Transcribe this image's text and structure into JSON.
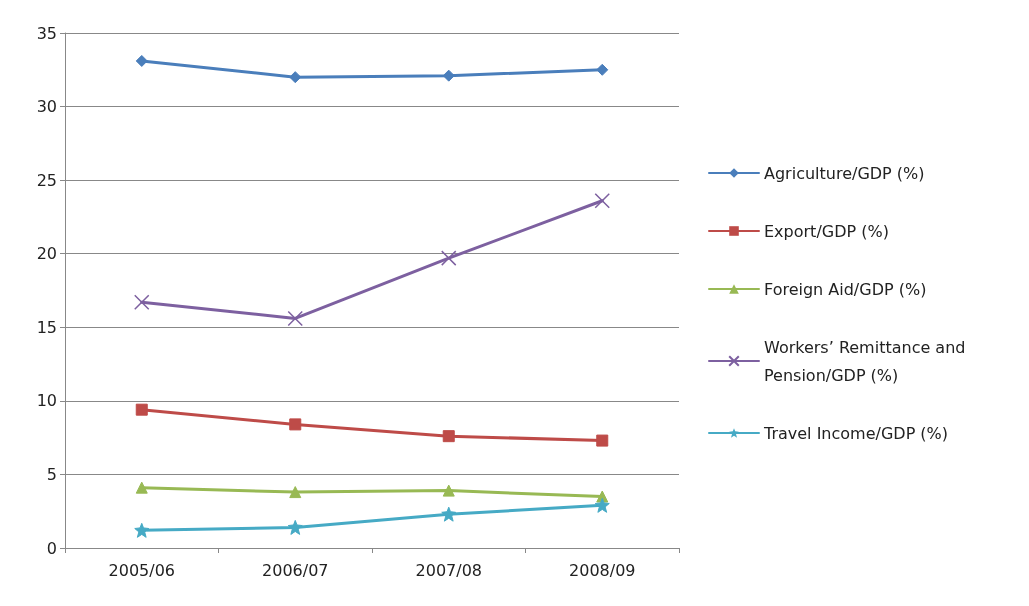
{
  "chart_data": {
    "type": "line",
    "categories": [
      "2005/06",
      "2006/07",
      "2007/08",
      "2008/09"
    ],
    "series": [
      {
        "name": "Agriculture/GDP (%)",
        "color": "#4a7ebb",
        "marker": "diamond",
        "values": [
          33.1,
          32.0,
          32.1,
          32.5
        ]
      },
      {
        "name": "Export/GDP (%)",
        "color": "#be4b48",
        "marker": "square",
        "values": [
          9.4,
          8.4,
          7.6,
          7.3
        ]
      },
      {
        "name": "Foreign Aid/GDP (%)",
        "color": "#98b954",
        "marker": "triangle",
        "values": [
          4.1,
          3.8,
          3.9,
          3.5
        ]
      },
      {
        "name": "Workers’ Remittance and Pension/GDP (%)",
        "color": "#7d60a0",
        "marker": "cross",
        "values": [
          16.7,
          15.6,
          19.7,
          23.6
        ]
      },
      {
        "name": "Travel Income/GDP (%)",
        "color": "#46aac5",
        "marker": "star",
        "values": [
          1.2,
          1.4,
          2.3,
          2.9
        ]
      }
    ],
    "ylim": [
      0,
      35
    ],
    "yticks": [
      0,
      5,
      10,
      15,
      20,
      25,
      30,
      35
    ],
    "grid": "y",
    "legend": "right",
    "line_style": "solid"
  }
}
